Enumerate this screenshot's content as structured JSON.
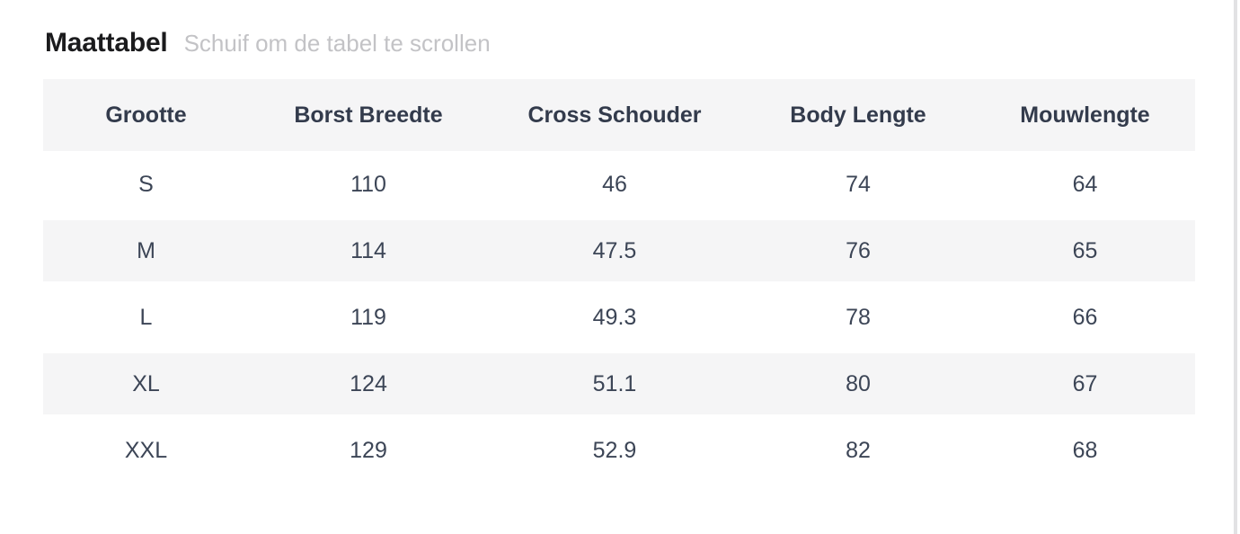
{
  "header": {
    "title": "Maattabel",
    "hint": "Schuif om de tabel te scrollen"
  },
  "table": {
    "headers": [
      "Grootte",
      "Borst Breedte",
      "Cross Schouder",
      "Body Lengte",
      "Mouwlengte"
    ],
    "rows": [
      [
        "S",
        "110",
        "46",
        "74",
        "64"
      ],
      [
        "M",
        "114",
        "47.5",
        "76",
        "65"
      ],
      [
        "L",
        "119",
        "49.3",
        "78",
        "66"
      ],
      [
        "XL",
        "124",
        "51.1",
        "80",
        "67"
      ],
      [
        "XXL",
        "129",
        "52.9",
        "82",
        "68"
      ]
    ]
  },
  "colors": {
    "stripe_bg": "#f5f5f6",
    "header_text": "#333b4c",
    "body_text": "#3c4556",
    "title_text": "#1b1b1d",
    "subtitle_text": "#c3c3c6",
    "scrollbar": "#e2e2e4",
    "page_bg": "#ffffff"
  }
}
